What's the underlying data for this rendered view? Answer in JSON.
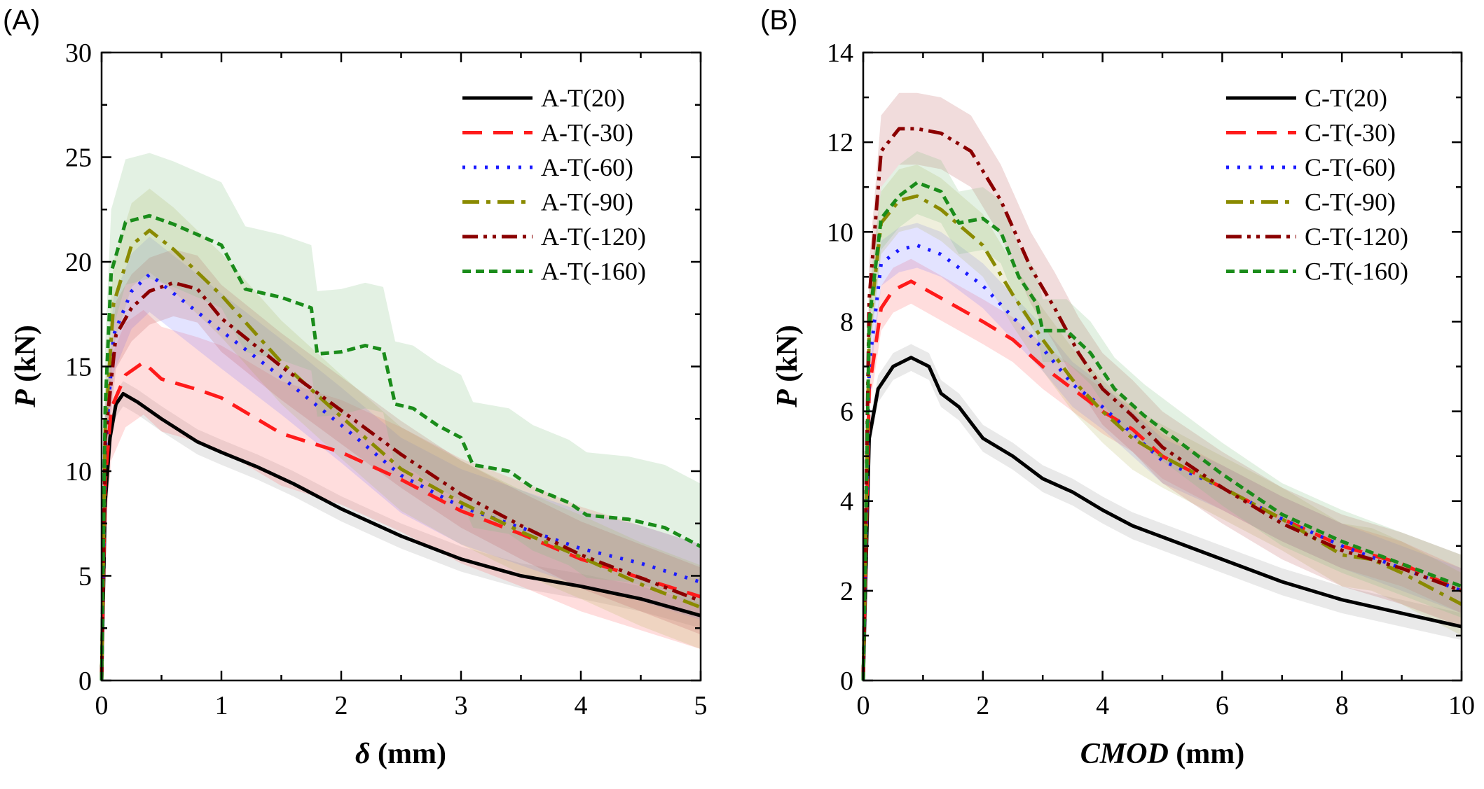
{
  "chart_data": [
    {
      "type": "line",
      "panel_label": "(A)",
      "xlabel_symbol": "δ",
      "xlabel_unit": " (mm)",
      "ylabel_symbol": "P",
      "ylabel_unit": " (kN)",
      "xlim": [
        0,
        5
      ],
      "ylim": [
        0,
        30
      ],
      "xticks": [
        0,
        1,
        2,
        3,
        4,
        5
      ],
      "yticks": [
        0,
        5,
        10,
        15,
        20,
        25,
        30
      ],
      "grid": false,
      "legend_position": "top-right",
      "series": [
        {
          "name": "A-T(20)",
          "color": "#000000",
          "dash": "solid",
          "band": "#9a9a9a",
          "points": [
            [
              0,
              0
            ],
            [
              0.03,
              8.5
            ],
            [
              0.07,
              11.6
            ],
            [
              0.12,
              13.2
            ],
            [
              0.18,
              13.7
            ],
            [
              0.3,
              13.3
            ],
            [
              0.5,
              12.5
            ],
            [
              0.8,
              11.4
            ],
            [
              1.0,
              10.9
            ],
            [
              1.3,
              10.2
            ],
            [
              1.6,
              9.4
            ],
            [
              2.0,
              8.2
            ],
            [
              2.5,
              6.9
            ],
            [
              3.0,
              5.8
            ],
            [
              3.5,
              5.0
            ],
            [
              4.0,
              4.5
            ],
            [
              4.5,
              3.9
            ],
            [
              5.0,
              3.1
            ]
          ],
          "band_width": 0.6
        },
        {
          "name": "A-T(-30)",
          "color": "#ff1a1a",
          "dash": "28,16",
          "band": "#ff6666",
          "points": [
            [
              0,
              0
            ],
            [
              0.03,
              9.5
            ],
            [
              0.08,
              13.0
            ],
            [
              0.2,
              14.6
            ],
            [
              0.35,
              15.2
            ],
            [
              0.5,
              14.4
            ],
            [
              0.8,
              13.9
            ],
            [
              1.0,
              13.5
            ],
            [
              1.5,
              11.8
            ],
            [
              2.0,
              10.9
            ],
            [
              2.5,
              9.6
            ],
            [
              3.0,
              8.1
            ],
            [
              3.5,
              7.0
            ],
            [
              4.0,
              5.8
            ],
            [
              4.5,
              4.9
            ],
            [
              5.0,
              4.0
            ]
          ],
          "band_width": 2.5
        },
        {
          "name": "A-T(-60)",
          "color": "#1a1aff",
          "dash": "4,12",
          "band": "#8080ff",
          "points": [
            [
              0,
              0
            ],
            [
              0.03,
              11.0
            ],
            [
              0.1,
              16.5
            ],
            [
              0.25,
              18.6
            ],
            [
              0.4,
              19.4
            ],
            [
              0.6,
              18.5
            ],
            [
              1.0,
              16.7
            ],
            [
              1.5,
              14.5
            ],
            [
              2.0,
              12.2
            ],
            [
              2.5,
              9.8
            ],
            [
              3.0,
              8.3
            ],
            [
              3.5,
              7.3
            ],
            [
              4.0,
              6.3
            ],
            [
              4.5,
              5.6
            ],
            [
              5.0,
              4.7
            ]
          ],
          "band_width": 1.8
        },
        {
          "name": "A-T(-90)",
          "color": "#8a8a00",
          "dash": "24,10,6,10",
          "band": "#b5b560",
          "points": [
            [
              0,
              0
            ],
            [
              0.03,
              12.0
            ],
            [
              0.1,
              18.0
            ],
            [
              0.25,
              20.8
            ],
            [
              0.4,
              21.5
            ],
            [
              0.6,
              20.6
            ],
            [
              1.0,
              18.4
            ],
            [
              1.5,
              15.2
            ],
            [
              2.0,
              12.6
            ],
            [
              2.5,
              10.1
            ],
            [
              3.0,
              8.5
            ],
            [
              3.5,
              7.1
            ],
            [
              4.0,
              5.9
            ],
            [
              4.5,
              4.6
            ],
            [
              5.0,
              3.5
            ]
          ],
          "band_width": 2.0
        },
        {
          "name": "A-T(-120)",
          "color": "#8b0000",
          "dash": "22,8,5,8,5,8",
          "band": "#c06060",
          "points": [
            [
              0,
              0
            ],
            [
              0.03,
              11.5
            ],
            [
              0.12,
              16.5
            ],
            [
              0.25,
              17.8
            ],
            [
              0.4,
              18.6
            ],
            [
              0.6,
              19.0
            ],
            [
              0.8,
              18.7
            ],
            [
              1.0,
              17.3
            ],
            [
              1.5,
              15.0
            ],
            [
              2.0,
              12.9
            ],
            [
              2.5,
              10.8
            ],
            [
              3.0,
              8.9
            ],
            [
              3.5,
              7.4
            ],
            [
              4.0,
              6.0
            ],
            [
              4.5,
              4.9
            ],
            [
              5.0,
              3.8
            ]
          ],
          "band_width": 1.6
        },
        {
          "name": "A-T(-160)",
          "color": "#1a8c1a",
          "dash": "12,7",
          "band": "#80c080",
          "points": [
            [
              0,
              0
            ],
            [
              0.03,
              13.0
            ],
            [
              0.08,
              19.5
            ],
            [
              0.2,
              21.9
            ],
            [
              0.4,
              22.2
            ],
            [
              0.6,
              21.8
            ],
            [
              0.8,
              21.3
            ],
            [
              1.0,
              20.8
            ],
            [
              1.2,
              18.7
            ],
            [
              1.5,
              18.3
            ],
            [
              1.75,
              17.8
            ],
            [
              1.8,
              15.6
            ],
            [
              2.0,
              15.7
            ],
            [
              2.2,
              16.0
            ],
            [
              2.35,
              15.8
            ],
            [
              2.45,
              13.2
            ],
            [
              2.6,
              13.0
            ],
            [
              2.8,
              12.2
            ],
            [
              3.0,
              11.6
            ],
            [
              3.1,
              10.3
            ],
            [
              3.4,
              10.0
            ],
            [
              3.6,
              9.2
            ],
            [
              3.9,
              8.5
            ],
            [
              4.05,
              7.9
            ],
            [
              4.4,
              7.7
            ],
            [
              4.7,
              7.3
            ],
            [
              5.0,
              6.4
            ]
          ],
          "band_width": 3.0
        }
      ]
    },
    {
      "type": "line",
      "panel_label": "(B)",
      "xlabel_symbol": "CMOD",
      "xlabel_unit": " (mm)",
      "ylabel_symbol": "P",
      "ylabel_unit": " (kN)",
      "xlim": [
        0,
        10
      ],
      "ylim": [
        0,
        14
      ],
      "xticks": [
        0,
        2,
        4,
        6,
        8,
        10
      ],
      "yticks": [
        0,
        2,
        4,
        6,
        8,
        10,
        12,
        14
      ],
      "grid": false,
      "legend_position": "top-right",
      "series": [
        {
          "name": "C-T(20)",
          "color": "#000000",
          "dash": "solid",
          "band": "#9a9a9a",
          "points": [
            [
              0,
              0
            ],
            [
              0.1,
              5.4
            ],
            [
              0.25,
              6.5
            ],
            [
              0.5,
              7.0
            ],
            [
              0.8,
              7.2
            ],
            [
              1.1,
              7.0
            ],
            [
              1.3,
              6.4
            ],
            [
              1.6,
              6.1
            ],
            [
              2.0,
              5.4
            ],
            [
              2.5,
              5.0
            ],
            [
              3.0,
              4.5
            ],
            [
              3.5,
              4.2
            ],
            [
              4.0,
              3.8
            ],
            [
              4.5,
              3.45
            ],
            [
              5.0,
              3.2
            ],
            [
              6.0,
              2.7
            ],
            [
              7.0,
              2.2
            ],
            [
              8.0,
              1.8
            ],
            [
              9.0,
              1.5
            ],
            [
              10.0,
              1.2
            ]
          ],
          "band_width": 0.3
        },
        {
          "name": "C-T(-30)",
          "color": "#ff1a1a",
          "dash": "28,16",
          "band": "#ff6666",
          "points": [
            [
              0,
              0
            ],
            [
              0.1,
              6.5
            ],
            [
              0.3,
              8.3
            ],
            [
              0.5,
              8.7
            ],
            [
              0.8,
              8.9
            ],
            [
              1.2,
              8.6
            ],
            [
              2.0,
              8.0
            ],
            [
              2.5,
              7.6
            ],
            [
              3.0,
              7.0
            ],
            [
              3.5,
              6.5
            ],
            [
              4.0,
              6.0
            ],
            [
              4.5,
              5.6
            ],
            [
              5.0,
              5.0
            ],
            [
              6.0,
              4.3
            ],
            [
              7.0,
              3.6
            ],
            [
              8.0,
              3.0
            ],
            [
              9.0,
              2.6
            ],
            [
              10.0,
              2.0
            ]
          ],
          "band_width": 0.5
        },
        {
          "name": "C-T(-60)",
          "color": "#1a1aff",
          "dash": "4,12",
          "band": "#8080ff",
          "points": [
            [
              0,
              0
            ],
            [
              0.1,
              7.0
            ],
            [
              0.3,
              9.3
            ],
            [
              0.6,
              9.6
            ],
            [
              0.9,
              9.7
            ],
            [
              1.3,
              9.5
            ],
            [
              2.0,
              8.8
            ],
            [
              2.5,
              8.1
            ],
            [
              3.0,
              7.4
            ],
            [
              3.5,
              6.6
            ],
            [
              4.0,
              6.1
            ],
            [
              4.5,
              5.5
            ],
            [
              5.0,
              4.9
            ],
            [
              6.0,
              4.3
            ],
            [
              7.0,
              3.6
            ],
            [
              8.0,
              3.0
            ],
            [
              9.0,
              2.5
            ],
            [
              10.0,
              2.0
            ]
          ],
          "band_width": 0.5
        },
        {
          "name": "C-T(-90)",
          "color": "#8a8a00",
          "dash": "24,10,6,10",
          "band": "#b5b560",
          "points": [
            [
              0,
              0
            ],
            [
              0.1,
              7.8
            ],
            [
              0.3,
              10.2
            ],
            [
              0.6,
              10.7
            ],
            [
              0.9,
              10.8
            ],
            [
              1.3,
              10.5
            ],
            [
              2.0,
              9.7
            ],
            [
              2.5,
              8.6
            ],
            [
              3.0,
              7.6
            ],
            [
              3.5,
              6.7
            ],
            [
              4.0,
              6.0
            ],
            [
              4.5,
              5.4
            ],
            [
              5.0,
              5.0
            ],
            [
              6.0,
              4.3
            ],
            [
              7.0,
              3.6
            ],
            [
              8.0,
              2.8
            ],
            [
              8.5,
              2.7
            ],
            [
              9.0,
              2.4
            ],
            [
              10.0,
              1.7
            ]
          ],
          "band_width": 0.7
        },
        {
          "name": "C-T(-120)",
          "color": "#8b0000",
          "dash": "22,8,5,8,5,8",
          "band": "#c06060",
          "points": [
            [
              0,
              0
            ],
            [
              0.1,
              8.5
            ],
            [
              0.3,
              11.8
            ],
            [
              0.6,
              12.3
            ],
            [
              0.9,
              12.3
            ],
            [
              1.3,
              12.2
            ],
            [
              1.8,
              11.8
            ],
            [
              2.3,
              10.7
            ],
            [
              2.8,
              9.2
            ],
            [
              3.2,
              8.3
            ],
            [
              3.6,
              7.3
            ],
            [
              4.0,
              6.5
            ],
            [
              4.5,
              5.9
            ],
            [
              5.0,
              5.2
            ],
            [
              6.0,
              4.3
            ],
            [
              7.0,
              3.5
            ],
            [
              8.0,
              2.9
            ],
            [
              9.0,
              2.5
            ],
            [
              10.0,
              2.0
            ]
          ],
          "band_width": 0.8
        },
        {
          "name": "C-T(-160)",
          "color": "#1a8c1a",
          "dash": "12,7",
          "band": "#80c080",
          "points": [
            [
              0,
              0
            ],
            [
              0.1,
              8.0
            ],
            [
              0.3,
              10.3
            ],
            [
              0.6,
              10.8
            ],
            [
              0.9,
              11.1
            ],
            [
              1.3,
              10.9
            ],
            [
              1.6,
              10.2
            ],
            [
              2.0,
              10.3
            ],
            [
              2.3,
              10.0
            ],
            [
              2.6,
              9.0
            ],
            [
              2.9,
              8.4
            ],
            [
              3.0,
              7.8
            ],
            [
              3.4,
              7.8
            ],
            [
              3.8,
              7.3
            ],
            [
              4.2,
              6.5
            ],
            [
              4.7,
              5.9
            ],
            [
              5.2,
              5.4
            ],
            [
              6.0,
              4.6
            ],
            [
              7.0,
              3.7
            ],
            [
              8.0,
              3.1
            ],
            [
              9.0,
              2.6
            ],
            [
              10.0,
              2.1
            ]
          ],
          "band_width": 0.7
        }
      ]
    }
  ]
}
